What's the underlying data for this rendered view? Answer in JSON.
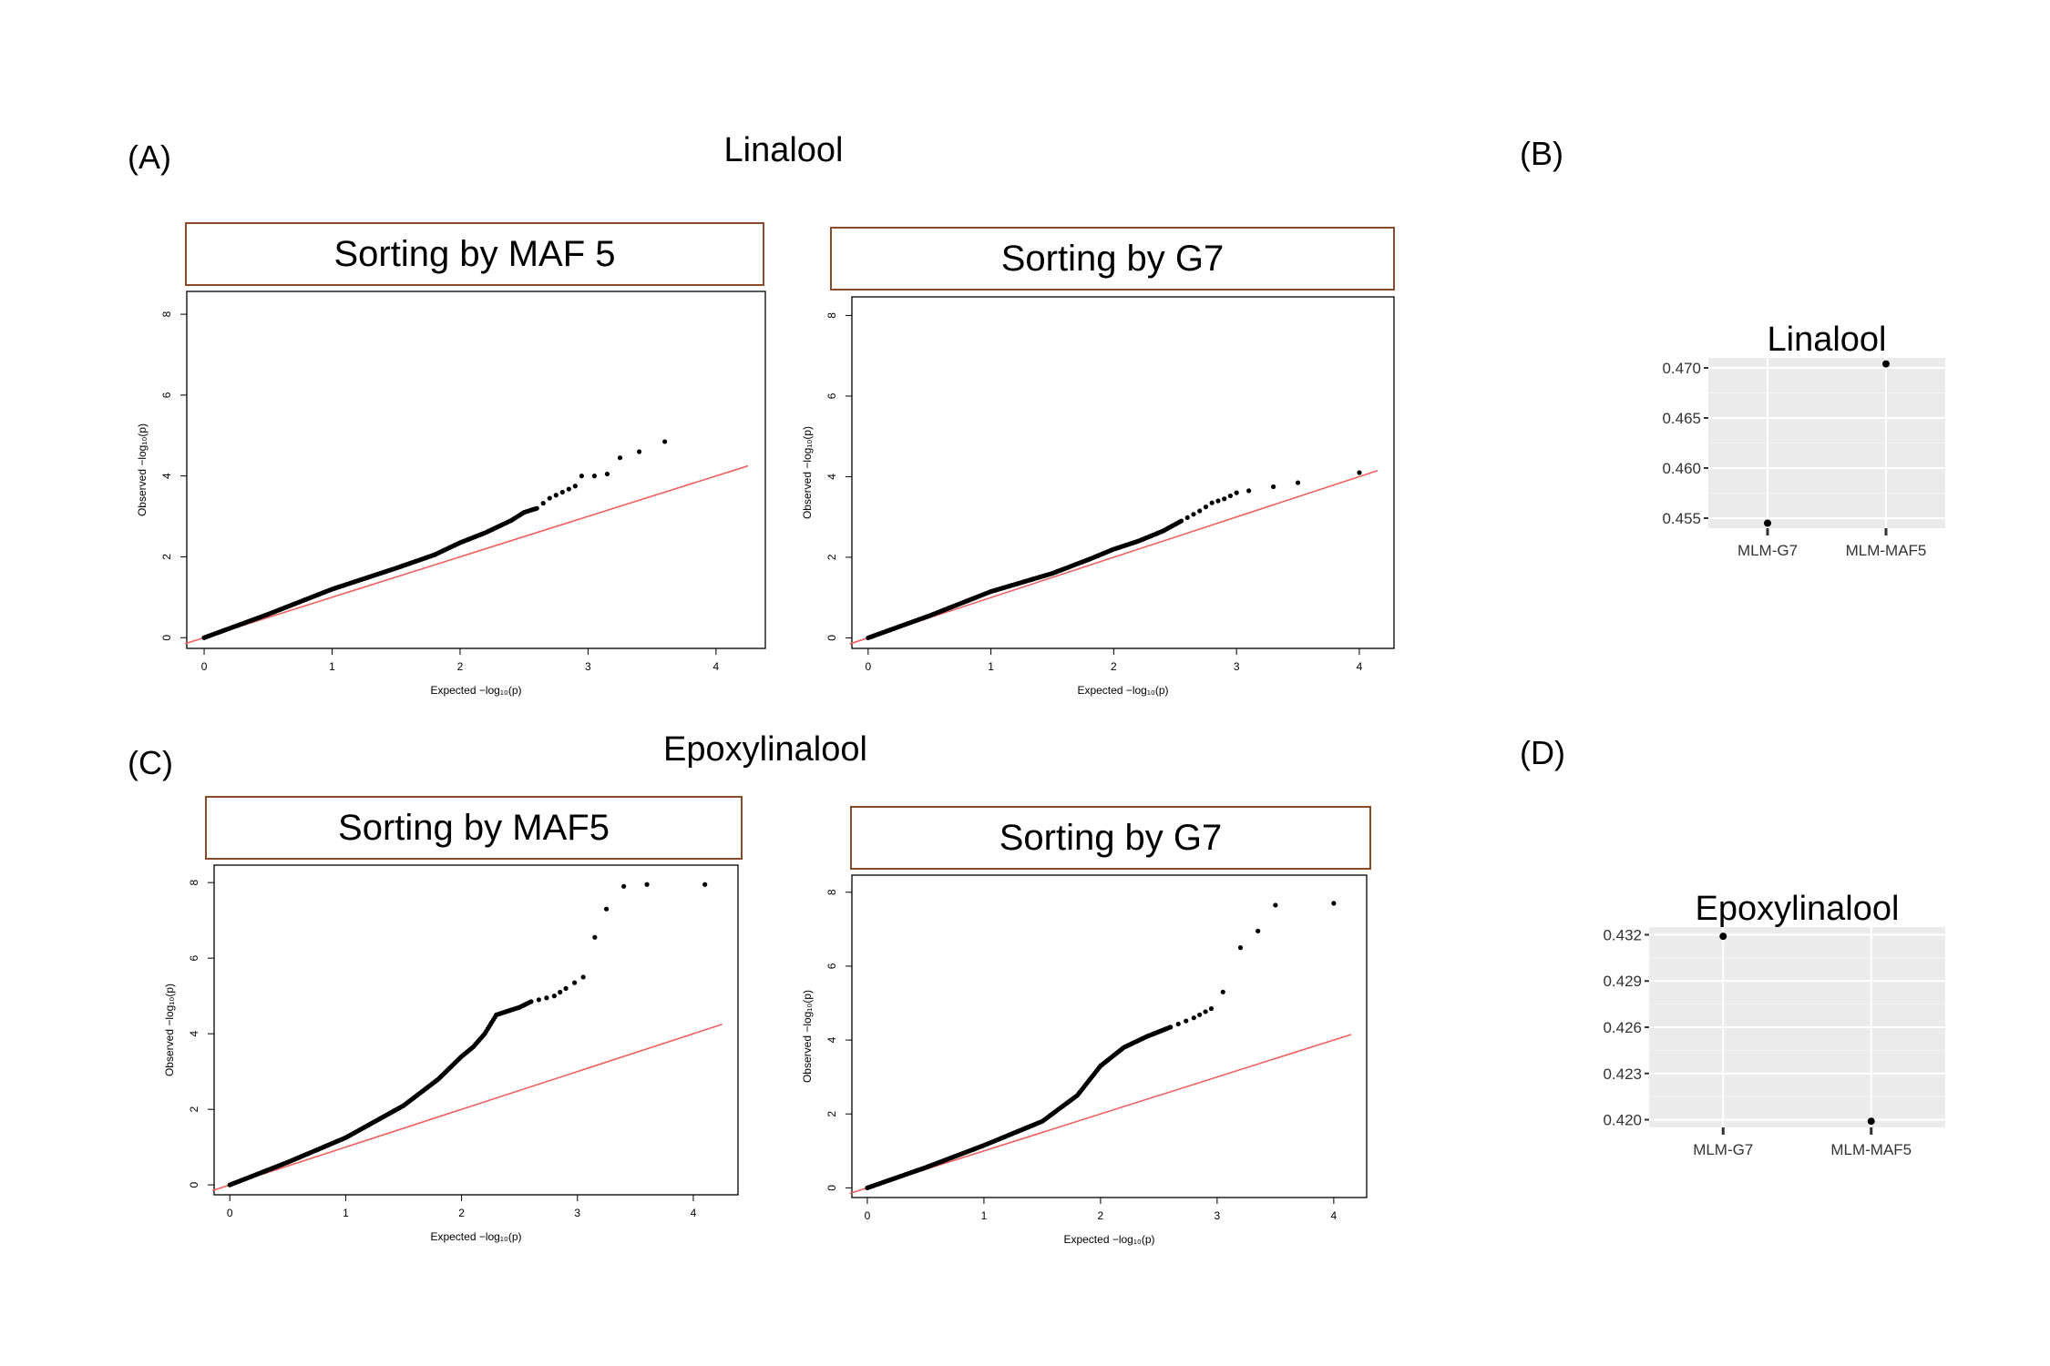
{
  "labels": {
    "A": "(A)",
    "B": "(B)",
    "C": "(C)",
    "D": "(D)"
  },
  "titles": {
    "linalool": "Linalool",
    "epoxylinalool": "Epoxylinalool"
  },
  "qq_axes": {
    "xlabel": "Expected −log₁₀(p)",
    "ylabel": "Observed −log₁₀(p)"
  },
  "chart_data": [
    {
      "id": "A1",
      "type": "scatter",
      "title": "Sorting by MAF 5",
      "xlim": [
        0,
        4.25
      ],
      "ylim": [
        0,
        8.3
      ],
      "xticks": [
        0,
        1,
        2,
        3,
        4
      ],
      "yticks": [
        0,
        2,
        4,
        6,
        8
      ],
      "reference_line": "y = x",
      "series": [
        {
          "points": [
            [
              0,
              0
            ],
            [
              0.5,
              0.58
            ],
            [
              1,
              1.2
            ],
            [
              1.5,
              1.72
            ],
            [
              1.8,
              2.05
            ],
            [
              2,
              2.35
            ],
            [
              2.2,
              2.6
            ],
            [
              2.3,
              2.75
            ],
            [
              2.4,
              2.9
            ],
            [
              2.5,
              3.1
            ],
            [
              2.6,
              3.2
            ],
            [
              2.7,
              3.45
            ],
            [
              2.8,
              3.6
            ],
            [
              2.9,
              3.75
            ],
            [
              2.95,
              4.0
            ],
            [
              3.05,
              4.0
            ],
            [
              3.15,
              4.05
            ],
            [
              3.25,
              4.45
            ],
            [
              3.4,
              4.6
            ],
            [
              3.6,
              4.85
            ]
          ]
        }
      ]
    },
    {
      "id": "A2",
      "type": "scatter",
      "title": "Sorting by G7",
      "xlim": [
        0,
        4.15
      ],
      "ylim": [
        0,
        8.2
      ],
      "xticks": [
        0,
        1,
        2,
        3,
        4
      ],
      "yticks": [
        0,
        2,
        4,
        6,
        8
      ],
      "reference_line": "y = x",
      "series": [
        {
          "points": [
            [
              0,
              0
            ],
            [
              0.5,
              0.55
            ],
            [
              1,
              1.15
            ],
            [
              1.5,
              1.6
            ],
            [
              1.8,
              1.95
            ],
            [
              2,
              2.2
            ],
            [
              2.2,
              2.4
            ],
            [
              2.4,
              2.65
            ],
            [
              2.55,
              2.9
            ],
            [
              2.7,
              3.15
            ],
            [
              2.8,
              3.35
            ],
            [
              2.9,
              3.45
            ],
            [
              3.0,
              3.6
            ],
            [
              3.1,
              3.65
            ],
            [
              3.3,
              3.75
            ],
            [
              3.5,
              3.85
            ],
            [
              4.0,
              4.1
            ]
          ]
        }
      ]
    },
    {
      "id": "C1",
      "type": "scatter",
      "title": "Sorting by MAF5",
      "xlim": [
        0,
        4.25
      ],
      "ylim": [
        0,
        8.2
      ],
      "xticks": [
        0,
        1,
        2,
        3,
        4
      ],
      "yticks": [
        0,
        2,
        4,
        6,
        8
      ],
      "reference_line": "y = x",
      "series": [
        {
          "points": [
            [
              0,
              0
            ],
            [
              0.5,
              0.6
            ],
            [
              1,
              1.25
            ],
            [
              1.5,
              2.1
            ],
            [
              1.8,
              2.8
            ],
            [
              2,
              3.4
            ],
            [
              2.1,
              3.65
            ],
            [
              2.2,
              4.0
            ],
            [
              2.3,
              4.5
            ],
            [
              2.5,
              4.7
            ],
            [
              2.6,
              4.85
            ],
            [
              2.8,
              5.0
            ],
            [
              2.9,
              5.2
            ],
            [
              3.05,
              5.5
            ],
            [
              3.15,
              6.55
            ],
            [
              3.25,
              7.3
            ],
            [
              3.4,
              7.9
            ],
            [
              3.6,
              7.95
            ],
            [
              4.1,
              7.95
            ]
          ]
        }
      ]
    },
    {
      "id": "C2",
      "type": "scatter",
      "title": "Sorting by G7",
      "xlim": [
        0,
        4.15
      ],
      "ylim": [
        0,
        8.2
      ],
      "xticks": [
        0,
        1,
        2,
        3,
        4
      ],
      "yticks": [
        0,
        2,
        4,
        6,
        8
      ],
      "reference_line": "y = x",
      "series": [
        {
          "points": [
            [
              0,
              0
            ],
            [
              0.5,
              0.55
            ],
            [
              1,
              1.15
            ],
            [
              1.5,
              1.8
            ],
            [
              1.8,
              2.5
            ],
            [
              2,
              3.3
            ],
            [
              2.2,
              3.8
            ],
            [
              2.4,
              4.1
            ],
            [
              2.6,
              4.35
            ],
            [
              2.8,
              4.6
            ],
            [
              2.95,
              4.85
            ],
            [
              3.05,
              5.3
            ],
            [
              3.2,
              6.5
            ],
            [
              3.35,
              6.95
            ],
            [
              3.5,
              7.65
            ],
            [
              4.0,
              7.7
            ]
          ]
        }
      ]
    },
    {
      "id": "B",
      "type": "scatter",
      "title": "Linalool",
      "categories": [
        "MLM-G7",
        "MLM-MAF5"
      ],
      "values": [
        0.4545,
        0.4704
      ],
      "ylim": [
        0.454,
        0.471
      ],
      "yticks": [
        0.455,
        0.46,
        0.465,
        0.47
      ],
      "yticklabels": [
        "0.455",
        "0.460",
        "0.465",
        "0.470"
      ]
    },
    {
      "id": "D",
      "type": "scatter",
      "title": "Epoxylinalool",
      "categories": [
        "MLM-G7",
        "MLM-MAF5"
      ],
      "values": [
        0.4319,
        0.4199
      ],
      "ylim": [
        0.4195,
        0.4325
      ],
      "yticks": [
        0.42,
        0.423,
        0.426,
        0.429,
        0.432
      ],
      "yticklabels": [
        "0.420",
        "0.423",
        "0.426",
        "0.429",
        "0.432"
      ]
    }
  ]
}
